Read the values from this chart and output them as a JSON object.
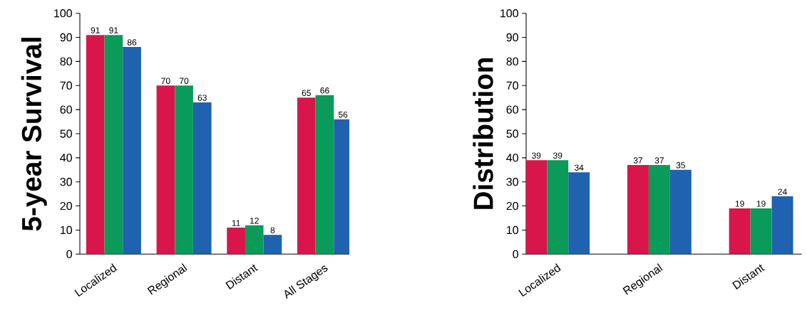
{
  "chart_data": [
    {
      "type": "bar",
      "ylabel": "5-year Survival",
      "categories": [
        "Localized",
        "Regional",
        "Distant",
        "All Stages"
      ],
      "series": [
        {
          "color": "#d9164b",
          "values": [
            91,
            70,
            11,
            65
          ]
        },
        {
          "color": "#0a9b5a",
          "values": [
            91,
            70,
            12,
            66
          ]
        },
        {
          "color": "#1f63b0",
          "values": [
            86,
            63,
            8,
            56
          ]
        }
      ],
      "ylim": [
        0,
        100
      ],
      "yticks": [
        0,
        10,
        20,
        30,
        40,
        50,
        60,
        70,
        80,
        90,
        100
      ],
      "data_labels": true
    },
    {
      "type": "bar",
      "ylabel": "Distribution",
      "categories": [
        "Localized",
        "Regional",
        "Distant"
      ],
      "series": [
        {
          "color": "#d9164b",
          "values": [
            39,
            37,
            19
          ]
        },
        {
          "color": "#0a9b5a",
          "values": [
            39,
            37,
            19
          ]
        },
        {
          "color": "#1f63b0",
          "values": [
            34,
            35,
            24
          ]
        }
      ],
      "ylim": [
        0,
        100
      ],
      "yticks": [
        0,
        10,
        20,
        30,
        40,
        50,
        60,
        70,
        80,
        90,
        100
      ],
      "data_labels": true
    }
  ]
}
